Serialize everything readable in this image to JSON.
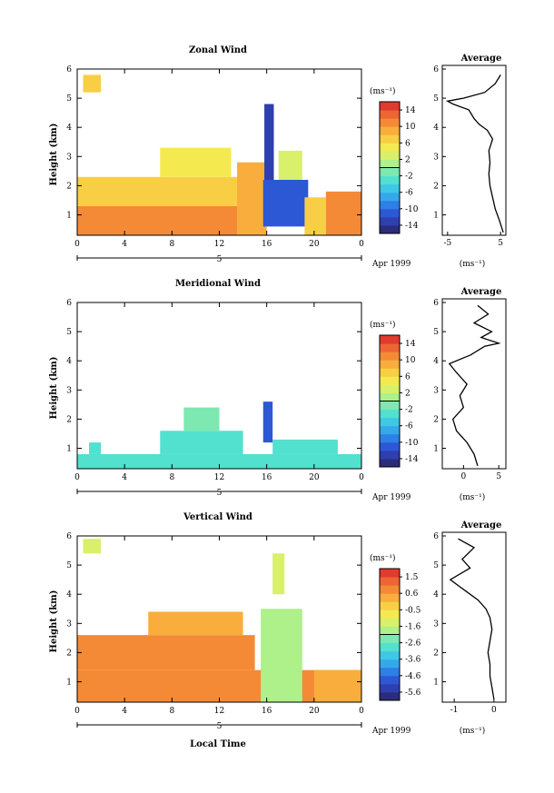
{
  "chart_data": [
    {
      "type": "heatmap",
      "title": "Zonal Wind",
      "ylabel": "Height (km)",
      "xticks": [
        "0",
        "4",
        "8",
        "12",
        "16",
        "20",
        "0"
      ],
      "yticks": [
        "1",
        "2",
        "3",
        "4",
        "5",
        "6"
      ],
      "xlim": [
        0,
        24
      ],
      "ylim": [
        0.3,
        6
      ],
      "date_marker": "5",
      "date_label": "Apr 1999",
      "colorbar": {
        "unit": "(ms⁻¹)",
        "ticks": [
          "14",
          "10",
          "6",
          "2",
          "-2",
          "-6",
          "-10",
          "-14"
        ],
        "range": [
          -16,
          16
        ]
      },
      "regions": [
        {
          "x": [
            0,
            14.3
          ],
          "y": [
            0.3,
            1.3
          ],
          "value": 10
        },
        {
          "x": [
            0,
            14.3
          ],
          "y": [
            1.3,
            2.3
          ],
          "value": 7
        },
        {
          "x": [
            7,
            13
          ],
          "y": [
            2.3,
            3.3
          ],
          "value": 4
        },
        {
          "x": [
            0.5,
            2
          ],
          "y": [
            5.2,
            5.8
          ],
          "value": 7
        },
        {
          "x": [
            13.5,
            16
          ],
          "y": [
            0.3,
            2.8
          ],
          "value": 8
        },
        {
          "x": [
            15.7,
            19.5
          ],
          "y": [
            0.6,
            2.2
          ],
          "value": -11
        },
        {
          "x": [
            15.8,
            16.6
          ],
          "y": [
            2.2,
            4.8
          ],
          "value": -13
        },
        {
          "x": [
            17,
            19
          ],
          "y": [
            2.2,
            3.2
          ],
          "value": 3
        },
        {
          "x": [
            19.2,
            21
          ],
          "y": [
            0.3,
            1.6
          ],
          "value": 6
        },
        {
          "x": [
            21,
            24
          ],
          "y": [
            0.3,
            1.8
          ],
          "value": 11
        }
      ],
      "profile": {
        "title": "Average",
        "xlabel": "(ms⁻¹)",
        "xticks": [
          "-5",
          "5"
        ],
        "xlim": [
          -6,
          6
        ],
        "points": [
          [
            5.5,
            0.4
          ],
          [
            4.8,
            0.8
          ],
          [
            4,
            1.2
          ],
          [
            3.5,
            1.6
          ],
          [
            3,
            2.0
          ],
          [
            2.8,
            2.4
          ],
          [
            3,
            2.8
          ],
          [
            2.8,
            3.2
          ],
          [
            3.5,
            3.6
          ],
          [
            2.5,
            3.9
          ],
          [
            1,
            4.1
          ],
          [
            0,
            4.3
          ],
          [
            -1,
            4.6
          ],
          [
            -4,
            4.8
          ],
          [
            -5,
            4.9
          ],
          [
            -2,
            5.0
          ],
          [
            2,
            5.2
          ],
          [
            4,
            5.5
          ],
          [
            5,
            5.8
          ]
        ]
      }
    },
    {
      "type": "heatmap",
      "title": "Meridional Wind",
      "ylabel": "Height (km)",
      "xticks": [
        "0",
        "4",
        "8",
        "12",
        "16",
        "20",
        "0"
      ],
      "yticks": [
        "1",
        "2",
        "3",
        "4",
        "5",
        "6"
      ],
      "xlim": [
        0,
        24
      ],
      "ylim": [
        0.3,
        6
      ],
      "date_marker": "5",
      "date_label": "Apr 1999",
      "colorbar": {
        "unit": "(ms⁻¹)",
        "ticks": [
          "14",
          "10",
          "6",
          "2",
          "-2",
          "-6",
          "-10",
          "-14"
        ],
        "range": [
          -16,
          16
        ]
      },
      "regions": [
        {
          "x": [
            0,
            24
          ],
          "y": [
            0.3,
            0.8
          ],
          "value": -4
        },
        {
          "x": [
            7,
            14
          ],
          "y": [
            0.8,
            1.6
          ],
          "value": -3
        },
        {
          "x": [
            9,
            12
          ],
          "y": [
            1.6,
            2.4
          ],
          "value": -2
        },
        {
          "x": [
            15.7,
            16.5
          ],
          "y": [
            1.2,
            2.6
          ],
          "value": -12
        },
        {
          "x": [
            16.5,
            22
          ],
          "y": [
            0.8,
            1.3
          ],
          "value": -4
        },
        {
          "x": [
            1,
            2
          ],
          "y": [
            0.8,
            1.2
          ],
          "value": -3
        }
      ],
      "profile": {
        "title": "Average",
        "xlabel": "(ms⁻¹)",
        "xticks": [
          "0",
          "5"
        ],
        "xlim": [
          -3,
          6
        ],
        "points": [
          [
            2,
            0.4
          ],
          [
            1.5,
            0.8
          ],
          [
            0.5,
            1.2
          ],
          [
            -1,
            1.6
          ],
          [
            -1.5,
            2.0
          ],
          [
            0,
            2.4
          ],
          [
            -0.5,
            2.8
          ],
          [
            0.5,
            3.2
          ],
          [
            -1,
            3.6
          ],
          [
            -2,
            3.9
          ],
          [
            1,
            4.2
          ],
          [
            3,
            4.5
          ],
          [
            5,
            4.6
          ],
          [
            2.5,
            4.8
          ],
          [
            4,
            5.0
          ],
          [
            1.5,
            5.3
          ],
          [
            3.5,
            5.6
          ],
          [
            2,
            5.9
          ]
        ]
      }
    },
    {
      "type": "heatmap",
      "title": "Vertical Wind",
      "ylabel": "Height (km)",
      "xlabel": "Local Time",
      "xticks": [
        "0",
        "4",
        "8",
        "12",
        "16",
        "20",
        "0"
      ],
      "yticks": [
        "1",
        "2",
        "3",
        "4",
        "5",
        "6"
      ],
      "xlim": [
        0,
        24
      ],
      "ylim": [
        0.3,
        6
      ],
      "date_marker": "5",
      "date_label": "Apr 1999",
      "colorbar": {
        "unit": "(ms⁻¹)",
        "ticks": [
          "1.5",
          "0.6",
          "-0.5",
          "-1.6",
          "-2.6",
          "-3.6",
          "-4.6",
          "-5.6"
        ],
        "range": [
          -6.2,
          2.1
        ]
      },
      "regions": [
        {
          "x": [
            0,
            24
          ],
          "y": [
            0.3,
            1.4
          ],
          "value": 0.6
        },
        {
          "x": [
            0,
            15
          ],
          "y": [
            1.4,
            2.6
          ],
          "value": 0.6
        },
        {
          "x": [
            6,
            14
          ],
          "y": [
            2.6,
            3.4
          ],
          "value": 0.5
        },
        {
          "x": [
            15.5,
            19
          ],
          "y": [
            0.3,
            3.5
          ],
          "value": -1.8
        },
        {
          "x": [
            16.5,
            17.5
          ],
          "y": [
            4.0,
            5.4
          ],
          "value": -1.2
        },
        {
          "x": [
            0.5,
            2
          ],
          "y": [
            5.4,
            5.9
          ],
          "value": -1.2
        },
        {
          "x": [
            20,
            24
          ],
          "y": [
            0.3,
            1.4
          ],
          "value": 0.5
        }
      ],
      "profile": {
        "title": "Average",
        "xlabel": "(ms⁻¹)",
        "xticks": [
          "-1",
          "0"
        ],
        "xlim": [
          -1.3,
          0.3
        ],
        "points": [
          [
            0,
            0.4
          ],
          [
            -0.05,
            0.8
          ],
          [
            -0.1,
            1.2
          ],
          [
            -0.1,
            1.6
          ],
          [
            -0.15,
            2.0
          ],
          [
            -0.1,
            2.4
          ],
          [
            -0.05,
            2.8
          ],
          [
            -0.1,
            3.2
          ],
          [
            -0.2,
            3.5
          ],
          [
            -0.4,
            3.8
          ],
          [
            -0.8,
            4.2
          ],
          [
            -1.1,
            4.5
          ],
          [
            -0.6,
            4.9
          ],
          [
            -0.8,
            5.2
          ],
          [
            -0.5,
            5.6
          ],
          [
            -0.9,
            5.9
          ]
        ]
      }
    }
  ]
}
